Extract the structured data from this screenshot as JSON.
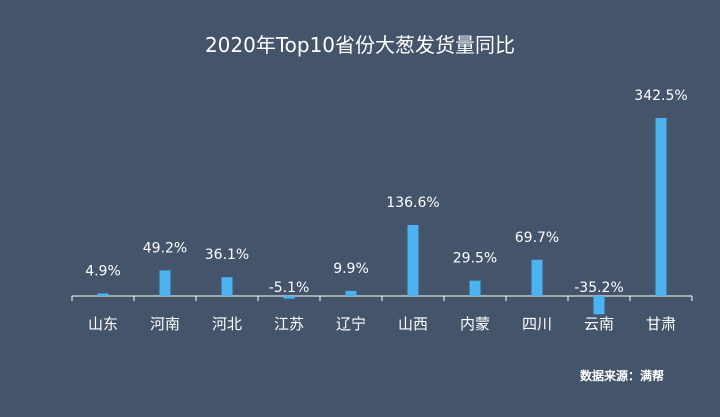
{
  "chart_data": {
    "type": "bar",
    "title": "2020年Top10省份大葱发货量同比",
    "categories": [
      "山东",
      "河南",
      "河北",
      "江苏",
      "辽宁",
      "山西",
      "内蒙",
      "四川",
      "云南",
      "甘肃"
    ],
    "values": [
      4.9,
      49.2,
      36.1,
      -5.1,
      9.9,
      136.6,
      29.5,
      69.7,
      -35.2,
      342.5
    ],
    "data_labels": [
      "4.9%",
      "49.2%",
      "36.1%",
      "-5.1%",
      "9.9%",
      "136.6%",
      "29.5%",
      "69.7%",
      "-35.2%",
      "342.5%"
    ],
    "bar_color": "#4db3f0",
    "grid": false,
    "legend": "none"
  },
  "source_note": "数据来源：满帮",
  "colors": {
    "background": "#44546a",
    "text": "#ffffff",
    "axis": "#ffffff"
  }
}
